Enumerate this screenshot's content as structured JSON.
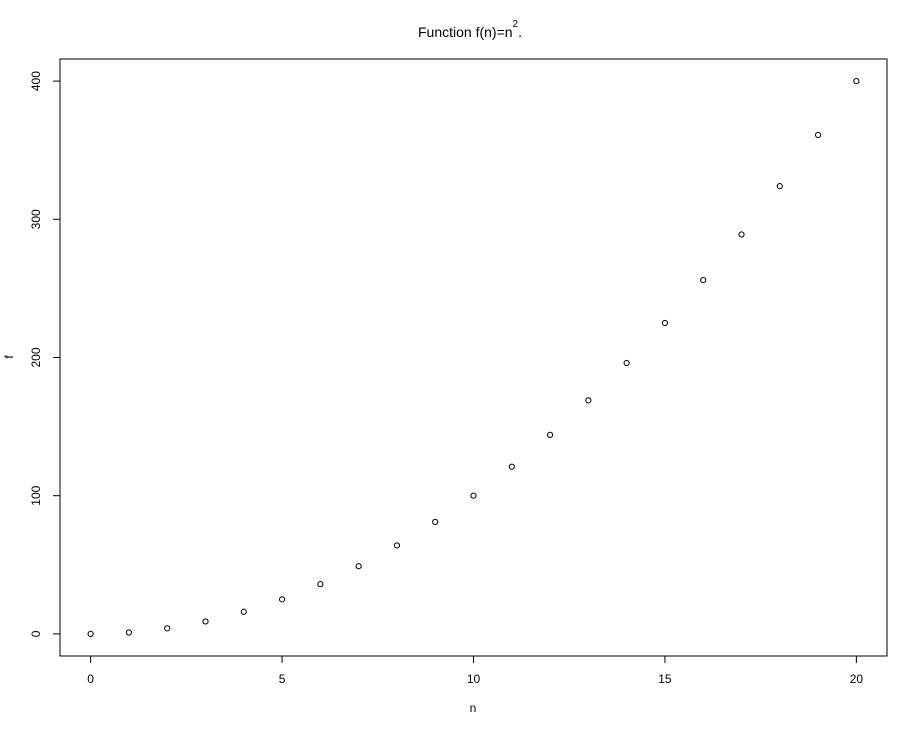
{
  "chart_data": {
    "type": "scatter",
    "title": {
      "base": "Function f(n)=n",
      "superscript": "2",
      "suffix": "."
    },
    "xlabel": "n",
    "ylabel": "f",
    "xlim": [
      -0.8,
      20.8
    ],
    "ylim": [
      -16,
      416
    ],
    "xticks": [
      0,
      5,
      10,
      15,
      20
    ],
    "yticks": [
      0,
      100,
      200,
      300,
      400
    ],
    "marker": "open-circle",
    "grid": false,
    "series": [
      {
        "x": [
          0,
          1,
          2,
          3,
          4,
          5,
          6,
          7,
          8,
          9,
          10,
          11,
          12,
          13,
          14,
          15,
          16,
          17,
          18,
          19,
          20
        ],
        "y": [
          0,
          1,
          4,
          9,
          16,
          25,
          36,
          49,
          64,
          81,
          100,
          121,
          144,
          169,
          196,
          225,
          256,
          289,
          324,
          361,
          400
        ]
      }
    ]
  }
}
